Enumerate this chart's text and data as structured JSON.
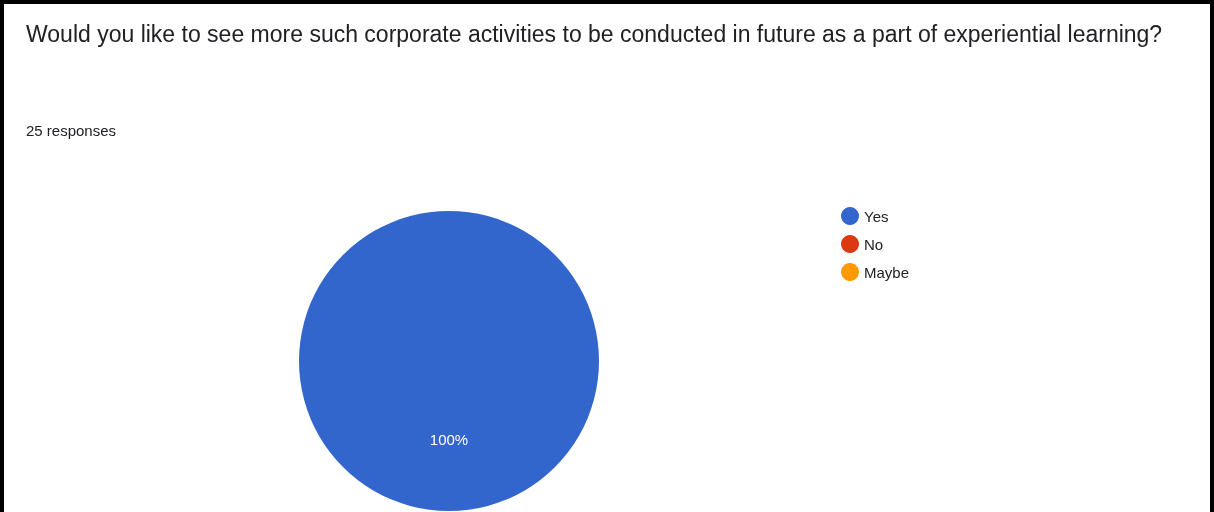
{
  "chart_data": {
    "type": "pie",
    "title": "Would you like to see more such corporate activities to be conducted in future as a part of experiential learning?",
    "subtitle": "25 responses",
    "categories": [
      "Yes",
      "No",
      "Maybe"
    ],
    "values": [
      100,
      0,
      0
    ],
    "colors": [
      "#3366cc",
      "#dc3912",
      "#ff9900"
    ],
    "value_labels": [
      "100%",
      null,
      null
    ],
    "legend": "right"
  }
}
